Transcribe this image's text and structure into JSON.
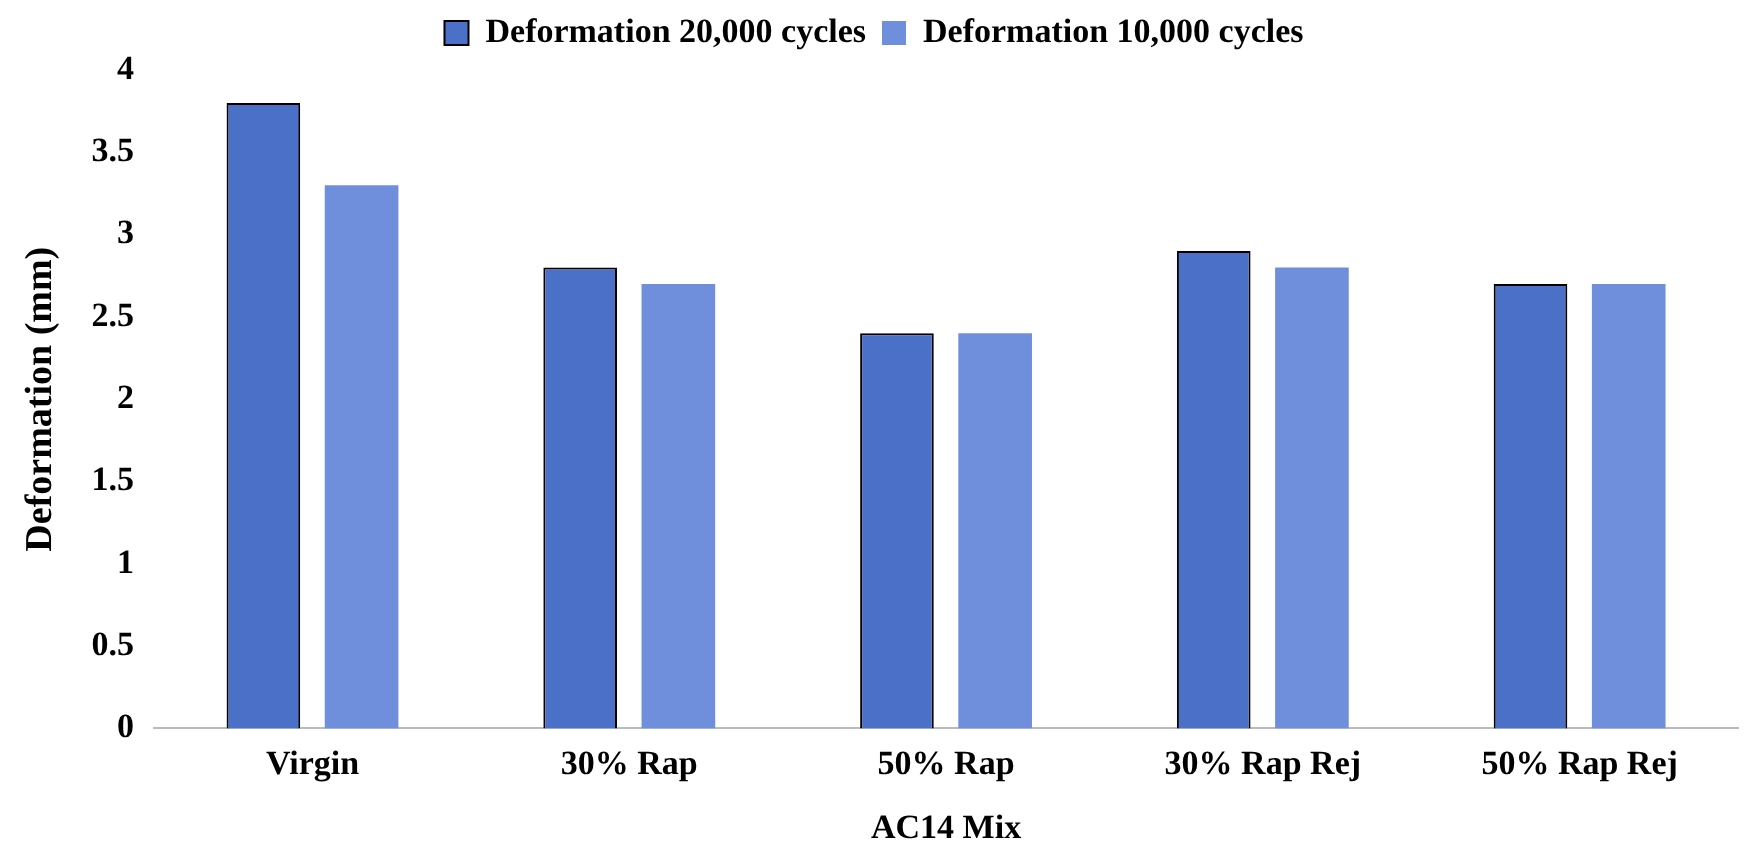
{
  "chart_data": {
    "type": "bar",
    "xlabel": "AC14 Mix",
    "ylabel": "Deformation (mm)",
    "categories": [
      "Virgin",
      "30% Rap",
      "50% Rap",
      "30% Rap Rej",
      "50% Rap Rej"
    ],
    "series": [
      {
        "name": "Deformation 20,000 cycles",
        "color": "#4a70c8",
        "values": [
          3.8,
          2.8,
          2.4,
          2.9,
          2.7
        ]
      },
      {
        "name": "Deformation 10,000 cycles",
        "color": "#6f8fdc",
        "values": [
          3.3,
          2.7,
          2.4,
          2.8,
          2.7
        ]
      }
    ],
    "ylim": [
      0,
      4
    ],
    "yticks": [
      0,
      0.5,
      1,
      1.5,
      2,
      2.5,
      3,
      3.5,
      4
    ],
    "grid": false,
    "legend": "top"
  }
}
